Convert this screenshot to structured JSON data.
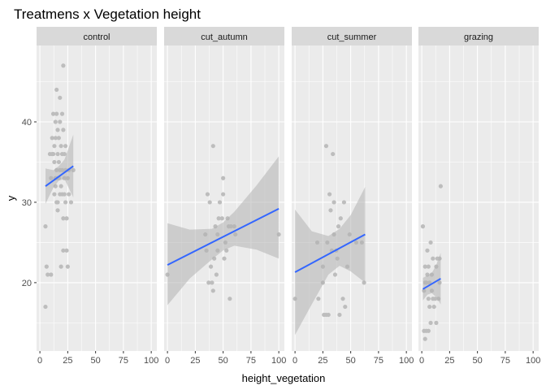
{
  "chart_data": {
    "type": "scatter",
    "title": "Treatmens x Vegetation height",
    "xlabel": "height_vegetation",
    "ylabel": "y",
    "xlim": [
      -3,
      105
    ],
    "ylim": [
      11.5,
      49.5
    ],
    "x_ticks": [
      0,
      25,
      50,
      75,
      100
    ],
    "y_ticks": [
      20,
      30,
      40
    ],
    "grid": true,
    "legend": "none",
    "colors": {
      "panel_bg": "#ebebeb",
      "strip_bg": "#d9d9d9",
      "grid": "#ffffff",
      "points": "#bdbdbd",
      "smooth_line": "#3366ff",
      "ribbon": "#b3b3b3"
    },
    "facets": [
      {
        "name": "control",
        "points": [
          [
            5,
            17
          ],
          [
            5,
            27
          ],
          [
            6,
            22
          ],
          [
            7,
            21
          ],
          [
            9,
            36
          ],
          [
            10,
            21
          ],
          [
            10,
            33
          ],
          [
            11,
            38
          ],
          [
            11,
            36
          ],
          [
            12,
            41
          ],
          [
            13,
            31
          ],
          [
            13,
            35
          ],
          [
            13,
            37
          ],
          [
            14,
            40
          ],
          [
            14,
            38
          ],
          [
            14,
            33
          ],
          [
            15,
            34
          ],
          [
            15,
            44
          ],
          [
            15,
            41
          ],
          [
            16,
            30
          ],
          [
            16,
            39
          ],
          [
            16,
            36
          ],
          [
            16,
            29
          ],
          [
            17,
            35
          ],
          [
            17,
            33
          ],
          [
            17,
            38
          ],
          [
            18,
            40
          ],
          [
            18,
            34
          ],
          [
            18,
            31
          ],
          [
            19,
            37
          ],
          [
            19,
            32
          ],
          [
            19,
            22
          ],
          [
            20,
            41
          ],
          [
            20,
            34
          ],
          [
            20,
            31
          ],
          [
            21,
            47
          ],
          [
            21,
            24
          ],
          [
            21,
            39
          ],
          [
            21,
            28
          ],
          [
            22,
            36
          ],
          [
            22,
            33
          ],
          [
            23,
            34
          ],
          [
            23,
            30
          ],
          [
            24,
            28
          ],
          [
            25,
            22
          ],
          [
            25,
            33
          ],
          [
            26,
            31
          ],
          [
            28,
            30
          ],
          [
            30,
            34
          ],
          [
            24,
            24
          ],
          [
            22,
            31
          ],
          [
            20,
            36
          ],
          [
            18,
            43
          ],
          [
            16,
            33
          ],
          [
            14,
            32
          ],
          [
            12,
            36
          ],
          [
            26,
            34
          ],
          [
            23,
            37
          ],
          [
            15,
            30
          ]
        ],
        "fit": {
          "x": [
            5,
            30
          ],
          "y": [
            32.0,
            34.5
          ]
        },
        "band": {
          "x": [
            5,
            12,
            17,
            22,
            30
          ],
          "lower": [
            29.8,
            31.8,
            32.7,
            32.9,
            30.6
          ],
          "upper": [
            34.2,
            34.0,
            34.5,
            35.3,
            38.4
          ]
        }
      },
      {
        "name": "cut_autumn",
        "points": [
          [
            0,
            21
          ],
          [
            34,
            26
          ],
          [
            36,
            31
          ],
          [
            37,
            20
          ],
          [
            38,
            30
          ],
          [
            39,
            22
          ],
          [
            40,
            20
          ],
          [
            41,
            37
          ],
          [
            41,
            19
          ],
          [
            42,
            23
          ],
          [
            43,
            27
          ],
          [
            44,
            21
          ],
          [
            45,
            26
          ],
          [
            46,
            28
          ],
          [
            47,
            30
          ],
          [
            49,
            28
          ],
          [
            50,
            33
          ],
          [
            50,
            31
          ],
          [
            51,
            23
          ],
          [
            52,
            25
          ],
          [
            54,
            28
          ],
          [
            55,
            27
          ],
          [
            56,
            18
          ],
          [
            57,
            27
          ],
          [
            60,
            27
          ],
          [
            61,
            26
          ],
          [
            100,
            26
          ],
          [
            35,
            24
          ],
          [
            45,
            24
          ],
          [
            53,
            24
          ]
        ],
        "fit": {
          "x": [
            0,
            100
          ],
          "y": [
            22.2,
            29.2
          ]
        },
        "band": {
          "x": [
            0,
            20,
            40,
            50,
            60,
            80,
            100
          ],
          "lower": [
            17.2,
            20.5,
            22.9,
            24.0,
            24.6,
            24.1,
            23.0
          ],
          "upper": [
            27.4,
            26.6,
            26.7,
            27.5,
            28.8,
            32.1,
            35.7
          ]
        }
      },
      {
        "name": "cut_summer",
        "points": [
          [
            0,
            18
          ],
          [
            20,
            25
          ],
          [
            21,
            18
          ],
          [
            25,
            22
          ],
          [
            25,
            20
          ],
          [
            26,
            16
          ],
          [
            28,
            37
          ],
          [
            28,
            16
          ],
          [
            29,
            25
          ],
          [
            30,
            16
          ],
          [
            31,
            31
          ],
          [
            32,
            29
          ],
          [
            33,
            24
          ],
          [
            34,
            36
          ],
          [
            35,
            26
          ],
          [
            36,
            21
          ],
          [
            37,
            24
          ],
          [
            38,
            23
          ],
          [
            39,
            27
          ],
          [
            40,
            16
          ],
          [
            41,
            28
          ],
          [
            43,
            18
          ],
          [
            44,
            30
          ],
          [
            45,
            17
          ],
          [
            47,
            22
          ],
          [
            49,
            26
          ],
          [
            55,
            25
          ],
          [
            60,
            25
          ],
          [
            62,
            20
          ],
          [
            35,
            30
          ]
        ],
        "fit": {
          "x": [
            0,
            63
          ],
          "y": [
            21.3,
            26.0
          ]
        },
        "band": {
          "x": [
            0,
            15,
            30,
            40,
            50,
            63
          ],
          "lower": [
            13.5,
            17.3,
            21.0,
            22.1,
            21.4,
            20.0
          ],
          "upper": [
            29.1,
            26.4,
            25.8,
            26.7,
            28.4,
            31.9
          ]
        }
      },
      {
        "name": "grazing",
        "points": [
          [
            1,
            27
          ],
          [
            2,
            19
          ],
          [
            2,
            14
          ],
          [
            3,
            22
          ],
          [
            3,
            13
          ],
          [
            4,
            20
          ],
          [
            4,
            14
          ],
          [
            5,
            24
          ],
          [
            5,
            21
          ],
          [
            6,
            18
          ],
          [
            6,
            22
          ],
          [
            6,
            14
          ],
          [
            7,
            17
          ],
          [
            7,
            20
          ],
          [
            8,
            25
          ],
          [
            8,
            15
          ],
          [
            9,
            19
          ],
          [
            10,
            23
          ],
          [
            10,
            18
          ],
          [
            11,
            17
          ],
          [
            12,
            18
          ],
          [
            13,
            22
          ],
          [
            13,
            15
          ],
          [
            14,
            23
          ],
          [
            15,
            18
          ],
          [
            16,
            23
          ],
          [
            16,
            20
          ],
          [
            17,
            32
          ],
          [
            3,
            20
          ],
          [
            9,
            21
          ]
        ],
        "fit": {
          "x": [
            1,
            17
          ],
          "y": [
            19.2,
            20.5
          ]
        },
        "band": {
          "x": [
            1,
            5,
            9,
            13,
            17
          ],
          "lower": [
            17.8,
            18.5,
            18.7,
            18.2,
            17.3
          ],
          "upper": [
            20.6,
            20.9,
            21.2,
            22.2,
            23.7
          ]
        }
      }
    ]
  }
}
